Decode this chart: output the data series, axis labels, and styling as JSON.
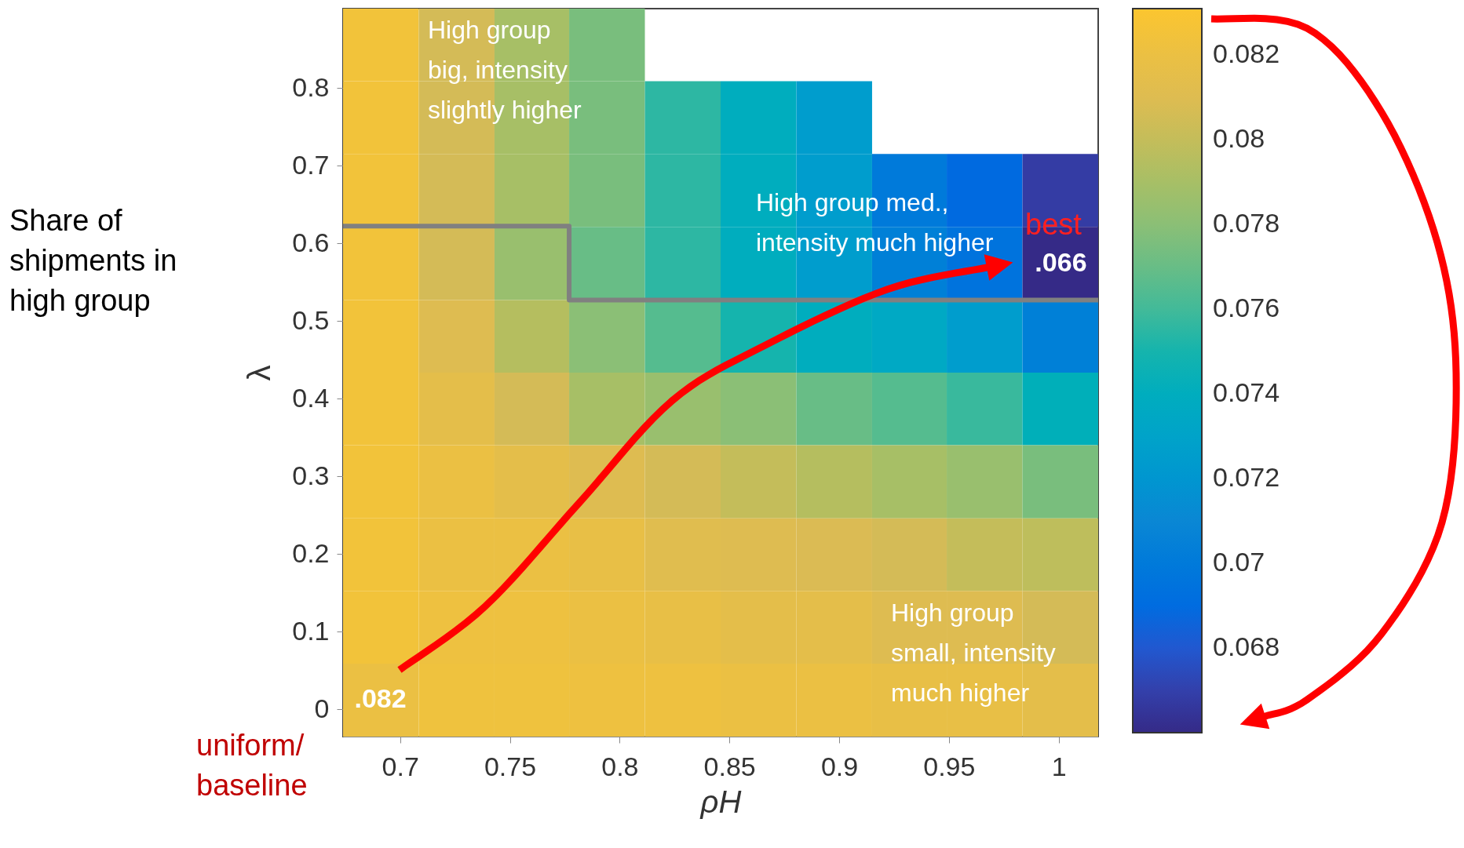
{
  "chart_data": {
    "type": "heatmap",
    "xlabel": "ρH",
    "ylabel": "λ",
    "x": [
      0.691,
      0.726,
      0.76,
      0.794,
      0.829,
      0.863,
      0.898,
      0.932,
      0.966,
      1.001
    ],
    "y": [
      0.855,
      0.762,
      0.668,
      0.574,
      0.48,
      0.387,
      0.293,
      0.199,
      0.106,
      0.012
    ],
    "xlim": [
      0.674,
      1.018
    ],
    "ylim": [
      -0.035,
      0.902
    ],
    "xticks": [
      0.7,
      0.75,
      0.8,
      0.85,
      0.9,
      0.95,
      1
    ],
    "yticks": [
      0,
      0.1,
      0.2,
      0.3,
      0.4,
      0.5,
      0.6,
      0.7,
      0.8
    ],
    "clim": [
      0.066,
      0.0831
    ],
    "cticks": [
      0.068,
      0.07,
      0.072,
      0.074,
      0.076,
      0.078,
      0.08,
      0.082
    ],
    "cells": [
      [
        0.0825,
        0.0805,
        0.079,
        0.0775,
        null,
        null,
        null,
        null,
        null,
        null
      ],
      [
        0.0825,
        0.0805,
        0.079,
        0.0775,
        0.0755,
        0.074,
        0.0725,
        null,
        null,
        null
      ],
      [
        0.0825,
        0.0805,
        0.079,
        0.0775,
        0.0755,
        0.074,
        0.0725,
        0.07,
        0.0689,
        0.0668
      ],
      [
        0.0825,
        0.0805,
        0.0785,
        0.077,
        0.0755,
        0.074,
        0.0725,
        0.0705,
        0.0695,
        0.066
      ],
      [
        0.0825,
        0.081,
        0.0795,
        0.078,
        0.0765,
        0.075,
        0.074,
        0.0735,
        0.0725,
        0.0705
      ],
      [
        0.0825,
        0.0815,
        0.0805,
        0.079,
        0.0785,
        0.078,
        0.077,
        0.0765,
        0.0758,
        0.0743
      ],
      [
        0.0825,
        0.082,
        0.0815,
        0.081,
        0.0805,
        0.08,
        0.0795,
        0.079,
        0.0785,
        0.0775
      ],
      [
        0.0825,
        0.082,
        0.082,
        0.0818,
        0.0812,
        0.081,
        0.0808,
        0.0805,
        0.08,
        0.0798
      ],
      [
        0.0825,
        0.0822,
        0.0822,
        0.082,
        0.0818,
        0.0815,
        0.0815,
        0.081,
        0.081,
        0.0805
      ],
      [
        0.082,
        0.0823,
        0.0823,
        0.0822,
        0.0822,
        0.082,
        0.082,
        0.0818,
        0.0818,
        0.0815
      ]
    ],
    "cell_labels": [
      [
        null,
        null,
        null,
        null,
        null,
        null,
        null,
        null,
        null,
        null
      ],
      [
        null,
        null,
        null,
        null,
        null,
        null,
        null,
        null,
        null,
        null
      ],
      [
        null,
        null,
        null,
        null,
        null,
        null,
        null,
        null,
        null,
        null
      ],
      [
        null,
        null,
        null,
        null,
        null,
        null,
        null,
        null,
        null,
        ".066"
      ],
      [
        null,
        null,
        null,
        null,
        null,
        null,
        null,
        null,
        null,
        null
      ],
      [
        null,
        null,
        null,
        null,
        null,
        null,
        null,
        null,
        null,
        null
      ],
      [
        null,
        null,
        null,
        null,
        null,
        null,
        null,
        null,
        null,
        null
      ],
      [
        null,
        null,
        null,
        null,
        null,
        null,
        null,
        null,
        null,
        null
      ],
      [
        null,
        null,
        null,
        null,
        null,
        null,
        null,
        null,
        null,
        null
      ],
      [
        ".082",
        null,
        null,
        null,
        null,
        null,
        null,
        null,
        null,
        null
      ]
    ],
    "series": [
      {
        "type": "line",
        "color": "#808080",
        "x": [
          0.674,
          0.777,
          0.777,
          1.018
        ],
        "values": [
          0.622,
          0.622,
          0.527,
          0.527
        ]
      }
    ],
    "annotations": [
      "Share of\nshipments in\nhigh group",
      "uniform/\nbaseline",
      "High group\nbig, intensity\nslightly higher",
      "High group med.,\nintensity much higher",
      "best",
      "High group\nsmall, intensity\nmuch higher"
    ]
  }
}
